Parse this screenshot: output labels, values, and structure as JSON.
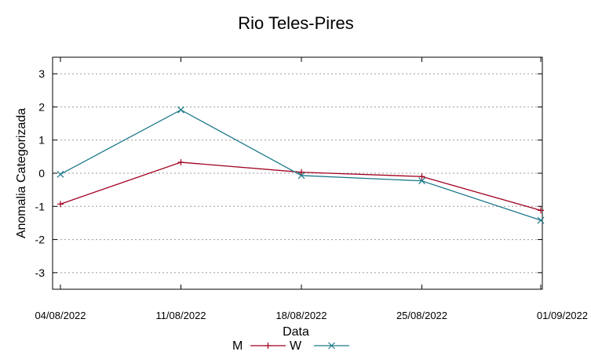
{
  "chart_data": {
    "type": "line",
    "title": "Rio Teles-Pires",
    "xlabel": "Data",
    "ylabel": "Anomalia Categorizada",
    "categories": [
      "04/08/2022",
      "11/08/2022",
      "18/08/2022",
      "25/08/2022",
      "01/09/2022"
    ],
    "ylim": [
      -3.5,
      3.5
    ],
    "yticks": [
      "3",
      "2",
      "1",
      "0",
      "-1",
      "-2",
      "-3"
    ],
    "ytick_values": [
      3,
      2,
      1,
      0,
      -1,
      -2,
      -3
    ],
    "grid": "horizontal dotted",
    "legend_position": "bottom",
    "series": [
      {
        "name": "M",
        "values": [
          -0.93,
          0.33,
          0.03,
          -0.1,
          -1.12
        ],
        "color": "#a0001e",
        "marker": "plus-icon"
      },
      {
        "name": "W",
        "values": [
          -0.03,
          1.91,
          -0.07,
          -0.23,
          -1.42
        ],
        "color": "#1f7a8c",
        "marker": "cross-icon"
      }
    ]
  }
}
